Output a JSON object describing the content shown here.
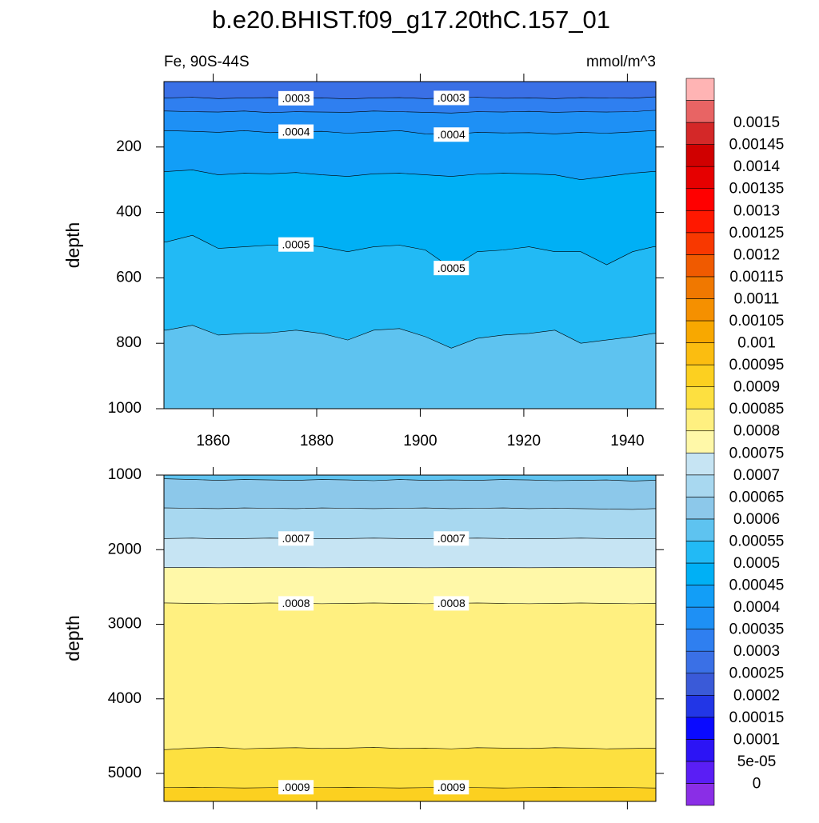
{
  "chart_data": {
    "type": "contour",
    "title": "b.e20.BHIST.f09_g17.20thC.157_01",
    "subtitle_left": "Fe, 90S-44S",
    "subtitle_right": "mmol/m^3",
    "panels": [
      {
        "ylabel": "depth",
        "ylim": [
          0,
          1000
        ],
        "y_reversed": true,
        "yticks": [
          200,
          400,
          600,
          800,
          1000
        ],
        "xlim": [
          1850.5,
          1945.5
        ],
        "xticks": [
          1860,
          1880,
          1900,
          1920,
          1940
        ],
        "show_xtick_labels": true,
        "x": [
          1851,
          1856,
          1861,
          1866,
          1871,
          1876,
          1881,
          1886,
          1891,
          1896,
          1901,
          1906,
          1911,
          1916,
          1921,
          1926,
          1931,
          1936,
          1941,
          1945
        ],
        "contours": [
          {
            "level": 0.0003,
            "label": ".0003",
            "values": [
              50,
              48,
              52,
              50,
              49,
              51,
              50,
              53,
              50,
              49,
              52,
              50,
              48,
              51,
              50,
              52,
              49,
              50,
              51,
              47
            ]
          },
          {
            "level": 0.00035,
            "values": [
              90,
              92,
              93,
              90,
              95,
              92,
              93,
              94,
              90,
              92,
              94,
              96,
              92,
              93,
              91,
              94,
              92,
              93,
              92,
              88
            ]
          },
          {
            "level": 0.0004,
            "label": ".0004",
            "values": [
              150,
              152,
              155,
              150,
              156,
              153,
              152,
              158,
              154,
              150,
              160,
              162,
              155,
              157,
              156,
              160,
              155,
              158,
              154,
              150
            ]
          },
          {
            "level": 0.00045,
            "values": [
              275,
              270,
              285,
              280,
              282,
              278,
              285,
              290,
              282,
              280,
              285,
              290,
              283,
              280,
              282,
              285,
              300,
              290,
              280,
              275
            ]
          },
          {
            "level": 0.0005,
            "label": ".0005",
            "values": [
              490,
              470,
              510,
              505,
              500,
              498,
              505,
              520,
              505,
              500,
              515,
              570,
              520,
              515,
              505,
              520,
              520,
              560,
              520,
              505
            ]
          },
          {
            "level": 0.00055,
            "values": [
              760,
              745,
              775,
              770,
              768,
              760,
              770,
              790,
              760,
              755,
              780,
              815,
              785,
              775,
              770,
              760,
              800,
              790,
              780,
              770
            ]
          }
        ]
      },
      {
        "ylabel": "depth",
        "ylim": [
          1000,
          5375
        ],
        "y_reversed": true,
        "yticks": [
          1000,
          2000,
          3000,
          4000,
          5000
        ],
        "xlim": [
          1850.5,
          1945.5
        ],
        "xticks": [
          1860,
          1880,
          1900,
          1920,
          1940
        ],
        "show_xtick_labels": false,
        "x": [
          1851,
          1856,
          1861,
          1866,
          1871,
          1876,
          1881,
          1886,
          1891,
          1896,
          1901,
          1906,
          1911,
          1916,
          1921,
          1926,
          1931,
          1936,
          1941,
          1945
        ],
        "contours": [
          {
            "level": 0.0006,
            "values": [
              1050,
              1060,
              1070,
              1060,
              1065,
              1070,
              1060,
              1065,
              1075,
              1060,
              1070,
              1065,
              1070,
              1060,
              1065,
              1075,
              1070,
              1065,
              1080,
              1070
            ]
          },
          {
            "level": 0.00065,
            "values": [
              1440,
              1445,
              1450,
              1440,
              1445,
              1450,
              1440,
              1445,
              1450,
              1445,
              1440,
              1450,
              1445,
              1440,
              1450,
              1445,
              1450,
              1455,
              1460,
              1450
            ]
          },
          {
            "level": 0.0007,
            "label": ".0007",
            "values": [
              1850,
              1845,
              1855,
              1850,
              1845,
              1850,
              1855,
              1850,
              1845,
              1850,
              1855,
              1850,
              1845,
              1850,
              1855,
              1850,
              1845,
              1850,
              1855,
              1850
            ]
          },
          {
            "level": 0.00075,
            "values": [
              2240,
              2240,
              2242,
              2240,
              2238,
              2240,
              2242,
              2240,
              2238,
              2240,
              2242,
              2240,
              2238,
              2240,
              2242,
              2240,
              2238,
              2240,
              2242,
              2240
            ]
          },
          {
            "level": 0.0008,
            "label": ".0008",
            "values": [
              2715,
              2720,
              2725,
              2720,
              2715,
              2720,
              2725,
              2720,
              2715,
              2720,
              2725,
              2720,
              2715,
              2720,
              2725,
              2720,
              2715,
              2720,
              2725,
              2720
            ]
          },
          {
            "level": 0.00085,
            "values": [
              4680,
              4660,
              4650,
              4670,
              4660,
              4655,
              4665,
              4660,
              4650,
              4665,
              4660,
              4670,
              4655,
              4660,
              4665,
              4655,
              4660,
              4670,
              4665,
              4660
            ]
          },
          {
            "level": 0.0009,
            "label": ".0009",
            "values": [
              5190,
              5185,
              5190,
              5195,
              5190,
              5185,
              5190,
              5185,
              5190,
              5195,
              5190,
              5185,
              5190,
              5195,
              5190,
              5185,
              5190,
              5185,
              5190,
              5195
            ]
          }
        ]
      }
    ],
    "colorbar": {
      "levels": [
        0,
        {
          "value": 5e-05,
          "label": "5e-05"
        },
        0.0001,
        0.00015,
        0.0002,
        0.00025,
        0.0003,
        0.00035,
        0.0004,
        0.00045,
        0.0005,
        0.00055,
        0.0006,
        0.00065,
        0.0007,
        0.00075,
        0.0008,
        0.00085,
        0.0009,
        0.00095,
        0.001,
        0.00105,
        0.0011,
        0.00115,
        0.0012,
        0.00125,
        0.0013,
        0.00135,
        0.0014,
        0.00145,
        0.0015
      ],
      "colors": [
        "#8a2ee6",
        "#5a1ef5",
        "#2c14f5",
        "#0a0aff",
        "#2236e6",
        "#3a5ad8",
        "#3a70e6",
        "#2f7ff0",
        "#1e90f5",
        "#129ef7",
        "#00b0f5",
        "#22baf5",
        "#5ec3f0",
        "#8cc8ea",
        "#a8d8f0",
        "#c6e4f3",
        "#fff8a8",
        "#fff080",
        "#fde040",
        "#fcd020",
        "#fbbd10",
        "#f8a800",
        "#f59000",
        "#f07800",
        "#f05a00",
        "#f83800",
        "#ff1800",
        "#ff0000",
        "#e60000",
        "#d00000",
        "#d42828",
        "#e86464",
        "#ffb4b4"
      ]
    }
  }
}
